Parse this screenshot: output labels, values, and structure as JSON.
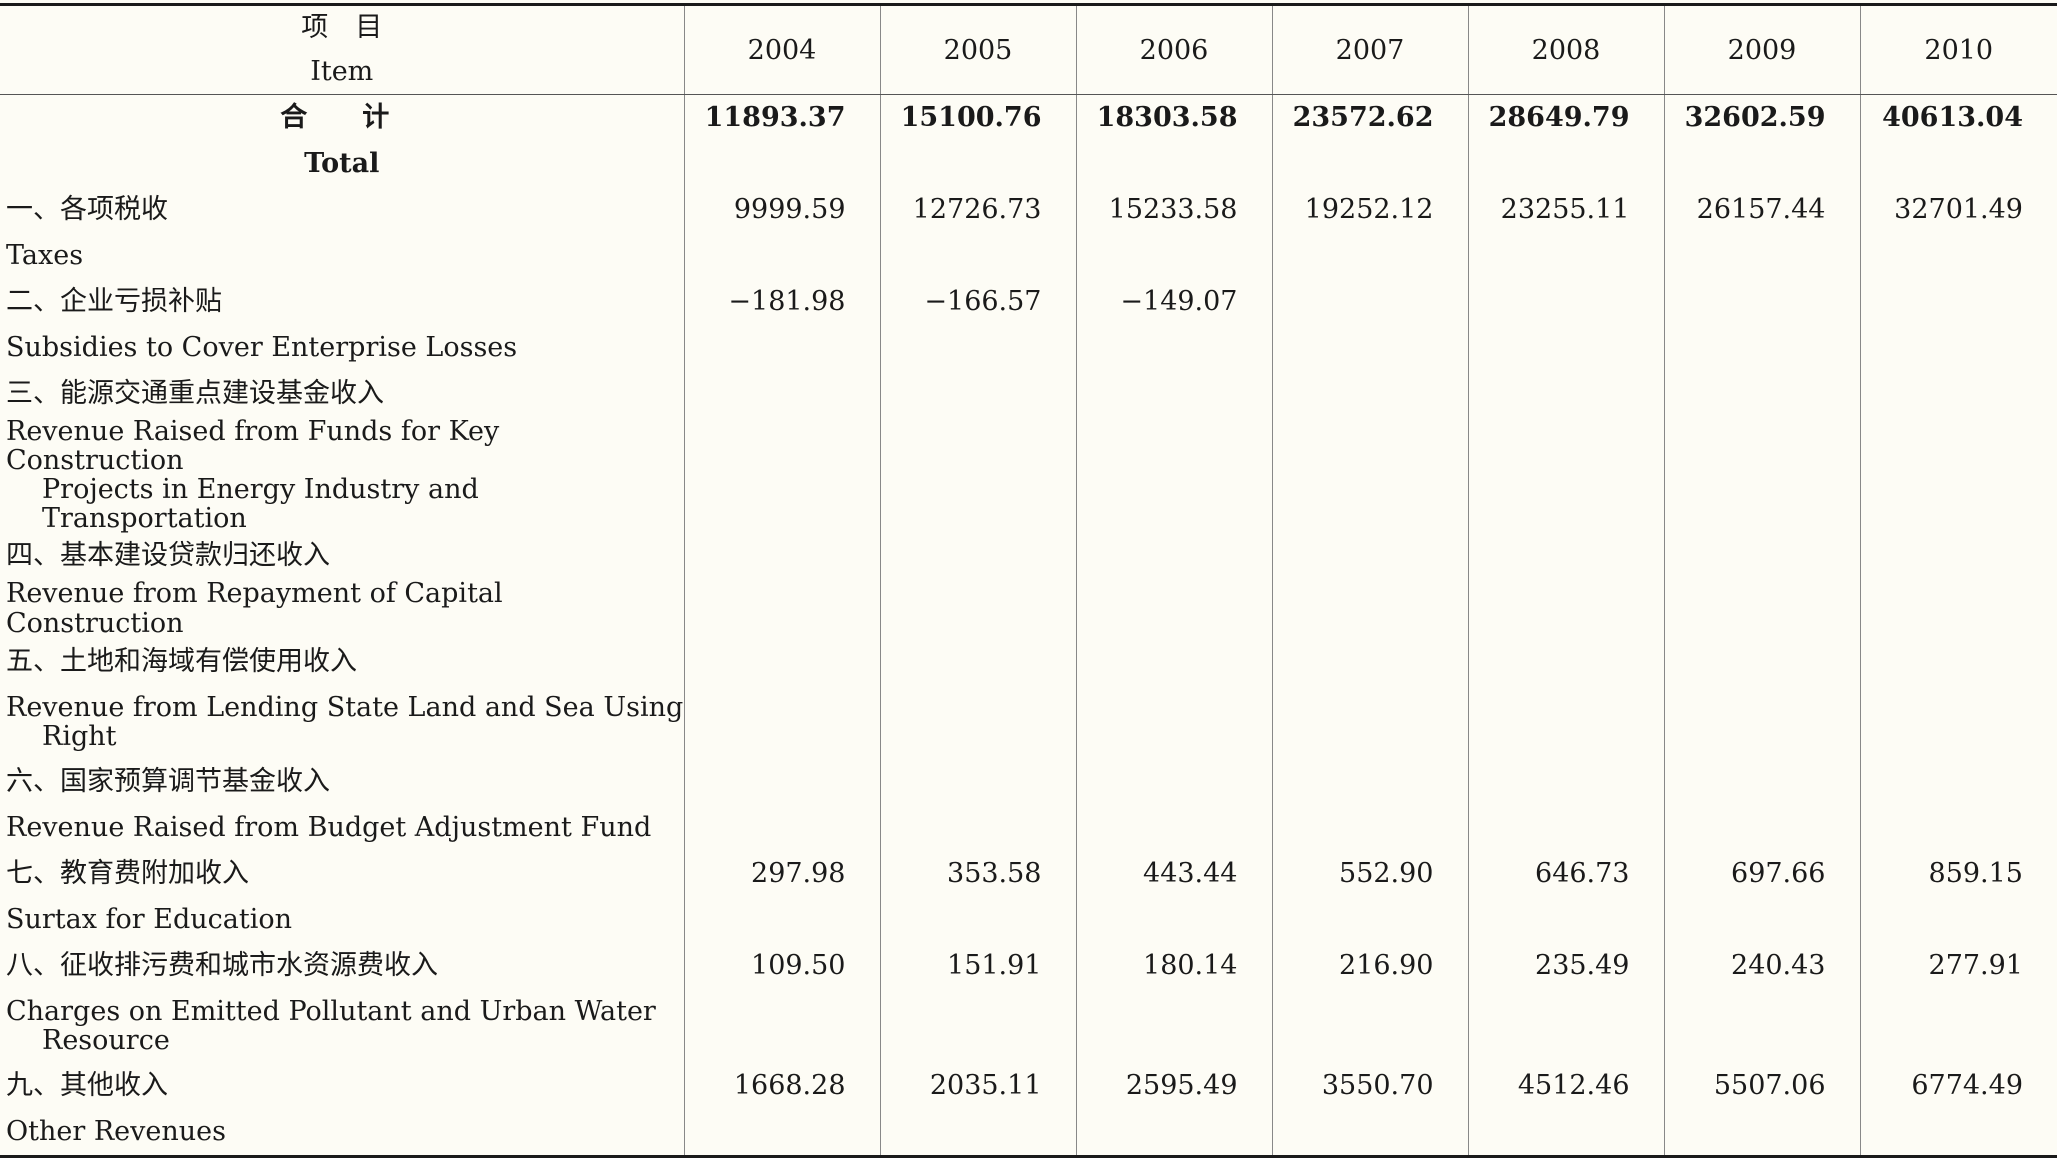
{
  "header": {
    "item_zh": "项　目",
    "item_en": "Item",
    "years": [
      "2004",
      "2005",
      "2006",
      "2007",
      "2008",
      "2009",
      "2010"
    ]
  },
  "total": {
    "label_zh": "合　计",
    "label_en": "Total",
    "values": [
      "11893.37",
      "15100.76",
      "18303.58",
      "23572.62",
      "28649.79",
      "32602.59",
      "40613.04"
    ]
  },
  "rows": [
    {
      "label_zh": "一、各项税收",
      "label_en": [
        "Taxes"
      ],
      "values": [
        "9999.59",
        "12726.73",
        "15233.58",
        "19252.12",
        "23255.11",
        "26157.44",
        "32701.49"
      ]
    },
    {
      "label_zh": "二、企业亏损补贴",
      "label_en": [
        "Subsidies to Cover Enterprise Losses"
      ],
      "values": [
        "−181.98",
        "−166.57",
        "−149.07",
        "",
        "",
        "",
        ""
      ]
    },
    {
      "label_zh": "三、能源交通重点建设基金收入",
      "label_en": [
        "Revenue Raised from Funds for Key Construction",
        "Projects in Energy Industry and Transportation"
      ],
      "values": [
        "",
        "",
        "",
        "",
        "",
        "",
        ""
      ]
    },
    {
      "label_zh": "四、基本建设贷款归还收入",
      "label_en": [
        "Revenue from Repayment of Capital Construction"
      ],
      "values": [
        "",
        "",
        "",
        "",
        "",
        "",
        ""
      ]
    },
    {
      "label_zh": "五、土地和海域有偿使用收入",
      "label_en": [
        "Revenue from Lending State Land and Sea Using",
        "Right"
      ],
      "values": [
        "",
        "",
        "",
        "",
        "",
        "",
        ""
      ]
    },
    {
      "label_zh": "六、国家预算调节基金收入",
      "label_en": [
        "Revenue Raised from Budget Adjustment Fund"
      ],
      "values": [
        "",
        "",
        "",
        "",
        "",
        "",
        ""
      ]
    },
    {
      "label_zh": "七、教育费附加收入",
      "label_en": [
        "Surtax for Education"
      ],
      "values": [
        "297.98",
        "353.58",
        "443.44",
        "552.90",
        "646.73",
        "697.66",
        "859.15"
      ]
    },
    {
      "label_zh": "八、征收排污费和城市水资源费收入",
      "label_en": [
        "Charges on Emitted Pollutant and Urban Water",
        "Resource"
      ],
      "values": [
        "109.50",
        "151.91",
        "180.14",
        "216.90",
        "235.49",
        "240.43",
        "277.91"
      ]
    },
    {
      "label_zh": "九、其他收入",
      "label_en": [
        "Other Revenues"
      ],
      "values": [
        "1668.28",
        "2035.11",
        "2595.49",
        "3550.70",
        "4512.46",
        "5507.06",
        "6774.49"
      ]
    }
  ]
}
